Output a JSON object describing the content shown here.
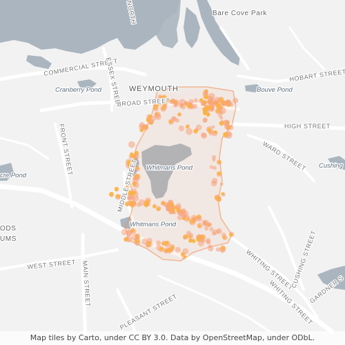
{
  "map": {
    "labels": {
      "bare_cove_park": "Bare Cove Park",
      "commercial_street": "COMMERCIAL STREET",
      "essex_street": "ESSEX STREET",
      "north": "NORTH",
      "hobart_street": "HOBART STREET",
      "cranberry_pond": "Cranberry Pond",
      "weymouth": "WEYMOUTH",
      "bouve_pond": "Bouve Pond",
      "broad_street": "BROAD STREET",
      "high_street": "HIGH STREET",
      "ward_street": "WARD STREET",
      "front_street": "FRONT STREET",
      "cushing": "Cushing",
      "whitmans_pond_1": "Whitmans Pond",
      "whitmans_pond_2": "Whitmans Pond",
      "cre_pond": "cre Pond",
      "middle_street": "MIDDLE STREET",
      "ods": "ODS",
      "ums": "UMS",
      "west_street": "WEST STREET",
      "main_street": "MAIN STREET",
      "whiting_street_1": "WHITING STREET",
      "whiting_street_2": "WHITING STREET",
      "cushing_street": "CUSHING STREET",
      "gardner": "GARDNER S",
      "pleasant_street": "PLEASANT STREET"
    },
    "colors": {
      "land": "#f2f2f2",
      "water": "#aab5bf",
      "road": "#ffffff",
      "heat_outer": "#f7a27e",
      "heat_core": "#fbb33a",
      "boundary": "#f28a4c"
    }
  },
  "attribution": "Map tiles by Carto, under CC BY 3.0. Data by OpenStreetMap, under ODbL."
}
